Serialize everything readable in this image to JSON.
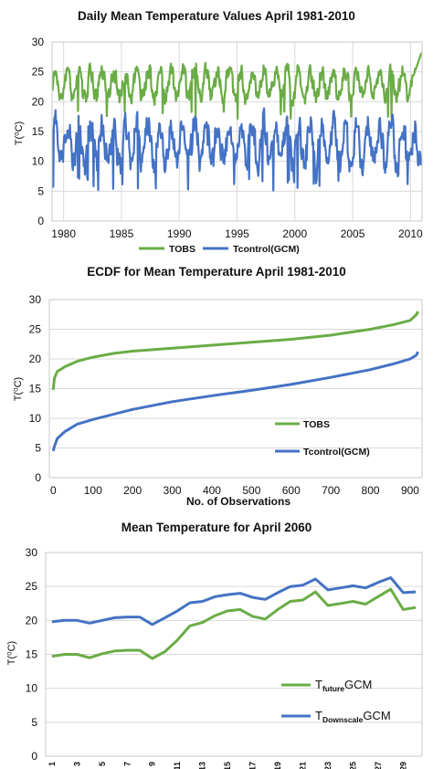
{
  "colors": {
    "tobs": "#6aac46",
    "tcontrol": "#4472c4",
    "grid": "#d9d9d9",
    "frame": "#d0d0d0"
  },
  "chart_data": [
    {
      "type": "line",
      "title": "Daily Mean Temperature Values April 1981-2010",
      "ylabel": "T(⁰C)",
      "xlabel": "",
      "xlim": [
        1979,
        2011
      ],
      "ylim": [
        0,
        30
      ],
      "xticks": [
        "1980",
        "1985",
        "1990",
        "1995",
        "2000",
        "2005",
        "2010"
      ],
      "yticks": [
        "0",
        "5",
        "10",
        "15",
        "20",
        "25",
        "30"
      ],
      "legend_position": "bottom",
      "note": "",
      "series": [
        {
          "name": "TOBS",
          "color": "#6aac46",
          "base": 23,
          "amp": 2.3,
          "mode": "obs"
        },
        {
          "name": "Tcontrol(GCM)",
          "color": "#4472c4",
          "base": 13,
          "amp": 3.6,
          "mode": "gcm"
        }
      ]
    },
    {
      "type": "line",
      "title": "ECDF for Mean Temperature April 1981-2010",
      "ylabel": "T(⁰C)",
      "xlabel": "No. of Observations",
      "xlim": [
        -10,
        930
      ],
      "ylim": [
        0,
        30
      ],
      "xticks": [
        "0",
        "100",
        "200",
        "300",
        "400",
        "500",
        "600",
        "700",
        "800",
        "900"
      ],
      "yticks": [
        "0",
        "5",
        "10",
        "15",
        "20",
        "25",
        "30"
      ],
      "legend_position": "right",
      "series": [
        {
          "name": "TOBS",
          "color": "#6aac46",
          "x": [
            0,
            3,
            10,
            30,
            60,
            100,
            150,
            200,
            300,
            400,
            500,
            600,
            700,
            800,
            860,
            900,
            915,
            920
          ],
          "y": [
            14.8,
            16.8,
            17.9,
            18.7,
            19.6,
            20.3,
            20.9,
            21.3,
            21.8,
            22.3,
            22.8,
            23.3,
            24.0,
            25.0,
            25.8,
            26.5,
            27.4,
            28.0
          ]
        },
        {
          "name": "Tcontrol(GCM)",
          "color": "#4472c4",
          "x": [
            0,
            3,
            10,
            30,
            60,
            100,
            200,
            300,
            400,
            500,
            600,
            700,
            800,
            860,
            900,
            915,
            920
          ],
          "y": [
            4.5,
            5.3,
            6.6,
            7.8,
            9.0,
            9.8,
            11.5,
            12.8,
            13.8,
            14.7,
            15.7,
            16.9,
            18.2,
            19.2,
            20.0,
            20.6,
            21.2
          ]
        }
      ]
    },
    {
      "type": "line",
      "title": "Mean Temperature for April 2060",
      "ylabel": "T(⁰C)",
      "xlabel": "",
      "xlim": [
        0.5,
        30.5
      ],
      "ylim": [
        0,
        30
      ],
      "x": [
        1,
        2,
        3,
        4,
        5,
        6,
        7,
        8,
        9,
        10,
        11,
        12,
        13,
        14,
        15,
        16,
        17,
        18,
        19,
        20,
        21,
        22,
        23,
        24,
        25,
        26,
        27,
        28,
        29,
        30
      ],
      "xticks": [
        "1",
        "3",
        "5",
        "7",
        "9",
        "11",
        "13",
        "15",
        "17",
        "19",
        "21",
        "23",
        "25",
        "27",
        "29"
      ],
      "yticks": [
        "0",
        "5",
        "10",
        "15",
        "20",
        "25",
        "30"
      ],
      "legend_position": "bottom-right",
      "series": [
        {
          "name": "TfutureGCM",
          "label_main": "T",
          "label_sub": "future",
          "label_tail": "GCM",
          "color": "#6aac46",
          "values": [
            14.7,
            15.0,
            15.0,
            14.5,
            15.1,
            15.5,
            15.6,
            15.6,
            14.4,
            15.4,
            17.1,
            19.2,
            19.7,
            20.7,
            21.4,
            21.6,
            20.6,
            20.2,
            21.6,
            22.8,
            23.0,
            24.2,
            22.2,
            22.5,
            22.8,
            22.4,
            23.5,
            24.6,
            21.6,
            21.9
          ]
        },
        {
          "name": "TDownscaleGCM",
          "label_main": "T",
          "label_sub": "Downscale",
          "label_tail": "GCM",
          "color": "#4472c4",
          "values": [
            19.8,
            20.0,
            20.0,
            19.6,
            20.0,
            20.4,
            20.5,
            20.5,
            19.4,
            20.4,
            21.4,
            22.6,
            22.8,
            23.5,
            23.8,
            24.0,
            23.4,
            23.1,
            24.1,
            25.0,
            25.2,
            26.1,
            24.5,
            24.8,
            25.1,
            24.8,
            25.6,
            26.3,
            24.1,
            24.2
          ]
        }
      ]
    }
  ]
}
